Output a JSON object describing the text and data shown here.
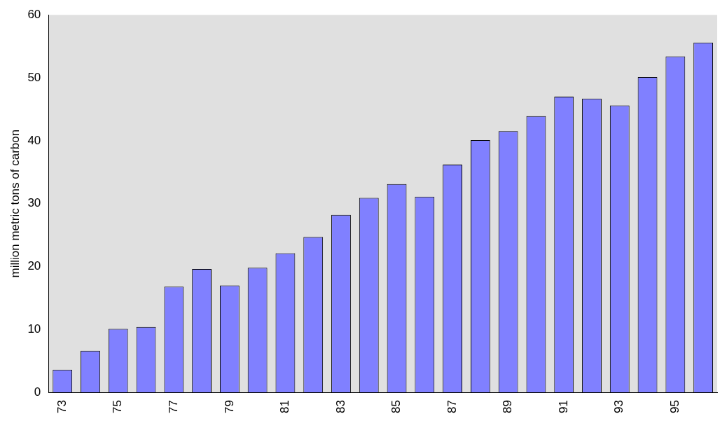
{
  "chart_data": {
    "type": "bar",
    "ylabel": "million metric tons of carbon",
    "categories": [
      "73",
      null,
      "75",
      null,
      "77",
      null,
      "79",
      null,
      "81",
      null,
      "83",
      null,
      "85",
      null,
      "87",
      null,
      "89",
      null,
      "91",
      null,
      "93",
      null,
      "95",
      null
    ],
    "values": [
      3.6,
      6.6,
      10.1,
      10.4,
      16.8,
      19.6,
      17.0,
      19.8,
      22.1,
      24.7,
      28.2,
      30.9,
      33.1,
      31.1,
      36.2,
      40.1,
      41.5,
      43.9,
      47.0,
      46.7,
      45.6,
      50.1,
      53.4,
      55.6
    ],
    "color": "#8080ff",
    "ylim": [
      0,
      60
    ],
    "yticks": [
      0,
      10,
      20,
      30,
      40,
      50,
      60
    ],
    "grid": false,
    "legend": false
  }
}
